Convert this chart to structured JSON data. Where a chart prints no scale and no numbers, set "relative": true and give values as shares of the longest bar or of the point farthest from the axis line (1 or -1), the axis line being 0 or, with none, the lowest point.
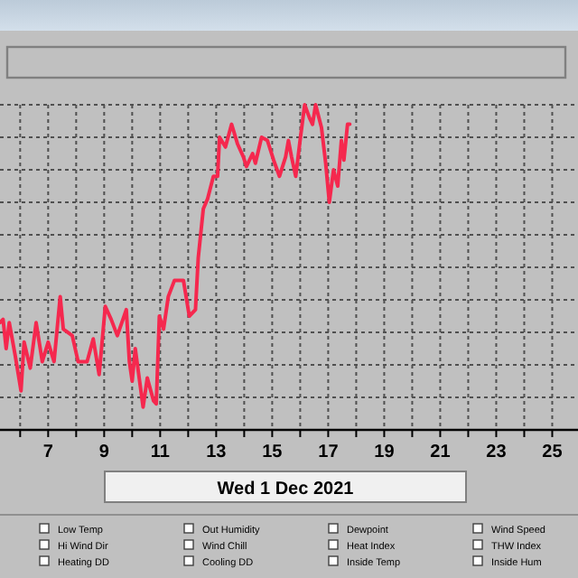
{
  "chart_data": {
    "type": "line",
    "relative": true,
    "xlabel": "Wed 1 Dec 2021",
    "grid": true,
    "marker": "none",
    "line_style": "solid",
    "tick_labels": "x",
    "xlim": [
      5.28,
      25.92
    ],
    "xticks": [
      {
        "value": 6,
        "label": null
      },
      7,
      {
        "value": 8,
        "label": null
      },
      9,
      {
        "value": 10,
        "label": null
      },
      11,
      {
        "value": 12,
        "label": null
      },
      13,
      {
        "value": 14,
        "label": null
      },
      15,
      {
        "value": 16,
        "label": null
      },
      17,
      {
        "value": 18,
        "label": null
      },
      19,
      {
        "value": 20,
        "label": null
      },
      21,
      {
        "value": 22,
        "label": null
      },
      23,
      {
        "value": 24,
        "label": null
      },
      25
    ],
    "annotations": [
      "Low Temp",
      "Hi Wind Dir",
      "Heating DD",
      "Out Humidity",
      "Wind Chill",
      "Cooling DD",
      "Dewpoint",
      "Heat Index",
      "Inside Temp",
      "Wind Speed",
      "THW Index",
      "Inside Hum"
    ],
    "series": [
      {
        "color": "#f5284e",
        "x": [
          5.28,
          5.39,
          5.5,
          5.61,
          5.82,
          6.03,
          6.14,
          6.36,
          6.57,
          6.79,
          7.0,
          7.21,
          7.43,
          7.54,
          7.86,
          8.07,
          8.39,
          8.61,
          8.82,
          9.04,
          9.25,
          9.47,
          9.79,
          9.9,
          10.0,
          10.11,
          10.39,
          10.54,
          10.76,
          10.86,
          10.97,
          11.12,
          11.29,
          11.51,
          11.83,
          12.04,
          12.26,
          12.36,
          12.54,
          12.69,
          12.9,
          13.05,
          13.12,
          13.33,
          13.55,
          13.76,
          13.97,
          14.08,
          14.3,
          14.4,
          14.62,
          14.83,
          15.05,
          15.26,
          15.48,
          15.58,
          15.69,
          15.84,
          16.01,
          16.16,
          16.33,
          16.44,
          16.55,
          16.76,
          16.91,
          17.04,
          17.19,
          17.34,
          17.47,
          17.56,
          17.69,
          17.77
        ],
        "values": [
          0.33,
          0.34,
          0.25,
          0.33,
          0.23,
          0.12,
          0.27,
          0.19,
          0.33,
          0.21,
          0.27,
          0.21,
          0.41,
          0.31,
          0.29,
          0.21,
          0.21,
          0.28,
          0.17,
          0.38,
          0.34,
          0.29,
          0.37,
          0.21,
          0.15,
          0.25,
          0.07,
          0.16,
          0.09,
          0.08,
          0.35,
          0.31,
          0.41,
          0.46,
          0.46,
          0.35,
          0.37,
          0.53,
          0.68,
          0.71,
          0.78,
          0.78,
          0.9,
          0.87,
          0.94,
          0.88,
          0.84,
          0.81,
          0.85,
          0.82,
          0.9,
          0.89,
          0.83,
          0.78,
          0.84,
          0.89,
          0.84,
          0.78,
          0.9,
          1.0,
          0.96,
          0.94,
          1.0,
          0.93,
          0.82,
          0.7,
          0.8,
          0.75,
          0.89,
          0.83,
          0.94,
          0.94
        ]
      }
    ]
  }
}
